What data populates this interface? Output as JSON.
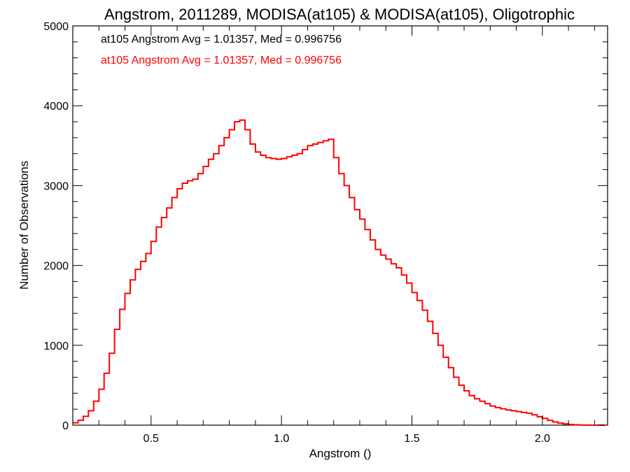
{
  "chart_data": {
    "type": "line",
    "title": "Angstrom, 2011289, MODISA(at105) & MODISA(at105), Oligotrophic",
    "xlabel": "Angstrom ()",
    "ylabel": "Number of Observations",
    "xlim": [
      0.2,
      2.25
    ],
    "ylim": [
      0,
      5000
    ],
    "xticks": [
      0.5,
      1.0,
      1.5,
      2.0
    ],
    "xtick_labels": [
      "0.5",
      "1.0",
      "1.5",
      "2.0"
    ],
    "yticks": [
      0,
      1000,
      2000,
      3000,
      4000,
      5000
    ],
    "ytick_labels": [
      "0",
      "1000",
      "2000",
      "3000",
      "4000",
      "5000"
    ],
    "grid": false,
    "annotations": [
      {
        "text": "at105 Angstrom Avg = 1.01357, Med = 0.996756",
        "color": "#000000"
      },
      {
        "text": "at105 Angstrom Avg = 1.01357, Med = 0.996756",
        "color": "#ff0000"
      }
    ],
    "series": [
      {
        "color": "#ff0000",
        "step": true,
        "x": [
          0.2,
          0.22,
          0.24,
          0.26,
          0.28,
          0.3,
          0.32,
          0.34,
          0.36,
          0.38,
          0.4,
          0.42,
          0.44,
          0.46,
          0.48,
          0.5,
          0.52,
          0.54,
          0.56,
          0.58,
          0.6,
          0.62,
          0.64,
          0.66,
          0.68,
          0.7,
          0.72,
          0.74,
          0.76,
          0.78,
          0.8,
          0.82,
          0.84,
          0.86,
          0.88,
          0.9,
          0.92,
          0.94,
          0.96,
          0.98,
          1.0,
          1.02,
          1.04,
          1.06,
          1.08,
          1.1,
          1.12,
          1.14,
          1.16,
          1.18,
          1.2,
          1.22,
          1.24,
          1.26,
          1.28,
          1.3,
          1.32,
          1.34,
          1.36,
          1.38,
          1.4,
          1.42,
          1.44,
          1.46,
          1.48,
          1.5,
          1.52,
          1.54,
          1.56,
          1.58,
          1.6,
          1.62,
          1.64,
          1.66,
          1.68,
          1.7,
          1.72,
          1.74,
          1.76,
          1.78,
          1.8,
          1.82,
          1.84,
          1.86,
          1.88,
          1.9,
          1.92,
          1.94,
          1.96,
          1.98,
          2.0,
          2.02,
          2.04,
          2.06,
          2.08,
          2.1,
          2.12,
          2.14,
          2.16,
          2.18,
          2.2,
          2.22
        ],
        "values": [
          30,
          60,
          110,
          180,
          300,
          450,
          650,
          900,
          1200,
          1450,
          1650,
          1820,
          1950,
          2050,
          2150,
          2300,
          2480,
          2600,
          2720,
          2850,
          2960,
          3030,
          3060,
          3080,
          3150,
          3240,
          3330,
          3400,
          3500,
          3600,
          3700,
          3800,
          3820,
          3700,
          3520,
          3420,
          3380,
          3350,
          3340,
          3330,
          3340,
          3360,
          3380,
          3400,
          3450,
          3500,
          3520,
          3540,
          3560,
          3580,
          3350,
          3150,
          3000,
          2850,
          2700,
          2580,
          2450,
          2320,
          2200,
          2130,
          2080,
          2020,
          1970,
          1880,
          1780,
          1660,
          1560,
          1440,
          1300,
          1150,
          1000,
          850,
          720,
          600,
          500,
          430,
          370,
          330,
          300,
          270,
          240,
          220,
          205,
          190,
          180,
          170,
          160,
          150,
          130,
          105,
          85,
          60,
          40,
          25,
          15,
          8,
          4,
          2,
          1,
          0,
          0,
          0
        ]
      }
    ]
  }
}
